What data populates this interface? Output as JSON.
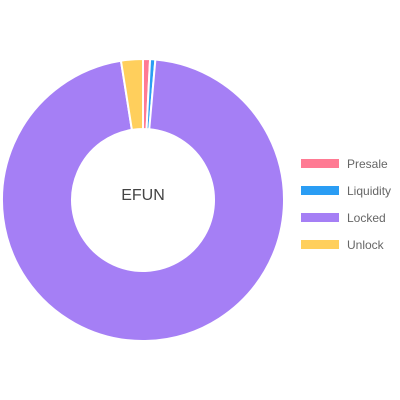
{
  "chart_data": {
    "type": "pie",
    "variant": "doughnut",
    "center_text": "EFUN",
    "legend_position": "right",
    "categories": [
      "Presale",
      "Liquidity",
      "Locked",
      "Unlock"
    ],
    "values": [
      0.8,
      0.6,
      96.1,
      2.5
    ],
    "unit": "%",
    "colors": [
      "#ff7a93",
      "#2a9df4",
      "#a57ff5",
      "#ffcf5c"
    ]
  }
}
